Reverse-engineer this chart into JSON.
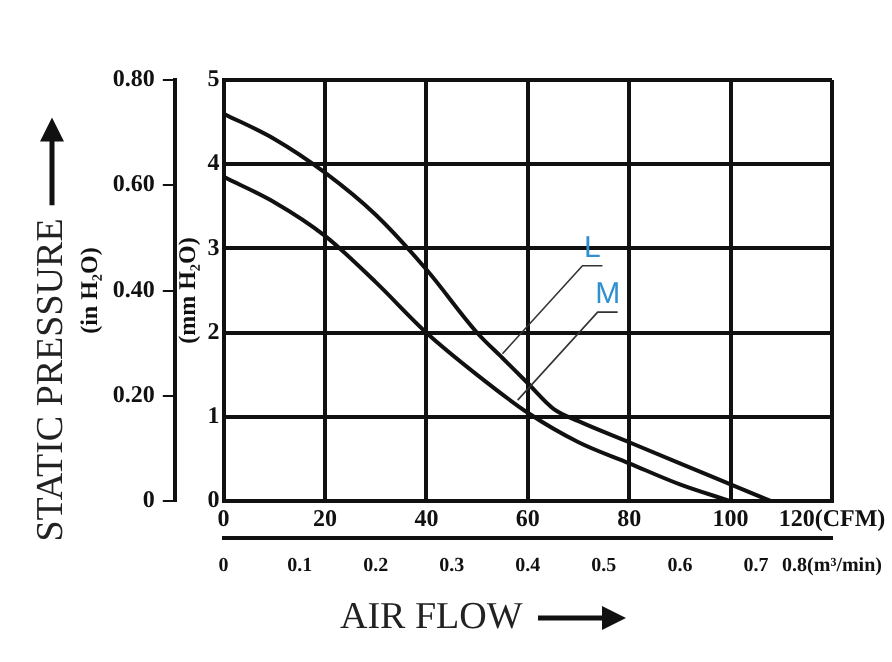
{
  "chart_data": {
    "type": "line",
    "ylabel": "(mm H₂O)",
    "y2label": "(in H₂O)",
    "x": [
      0,
      10,
      20,
      30,
      40,
      50,
      55,
      60,
      65,
      70,
      80,
      90,
      100,
      108
    ],
    "series": [
      {
        "color": "#111111",
        "values": [
          4.6,
          4.3,
          3.9,
          3.4,
          2.75,
          2.0,
          1.7,
          1.4,
          1.1,
          0.95,
          0.7,
          0.45,
          0.2,
          0
        ]
      },
      {
        "color": "#111111",
        "x": [
          0,
          10,
          20,
          30,
          40,
          50,
          60,
          70,
          80,
          90,
          100
        ],
        "values": [
          3.85,
          3.55,
          3.15,
          2.6,
          2.0,
          1.5,
          1.05,
          0.7,
          0.45,
          0.2,
          0
        ]
      }
    ],
    "xlim": [
      0,
      120
    ],
    "xticks": [
      0,
      20,
      40,
      60,
      80,
      100,
      {
        "value": 120,
        "label": "120(CFM)"
      }
    ],
    "x2lim": [
      0,
      0.8
    ],
    "x2ticks": [
      0,
      0.1,
      0.2,
      0.3,
      0.4,
      0.5,
      0.6,
      0.7,
      {
        "value": 0.8,
        "label": "0.8(m³/min)"
      }
    ],
    "ylim": [
      0,
      5
    ],
    "yticks": [
      0,
      1,
      2,
      3,
      4,
      5
    ],
    "y2lim": [
      0,
      0.8
    ],
    "y2ticks": [
      0,
      {
        "value": 0.2,
        "label": "0.20"
      },
      {
        "value": 0.4,
        "label": "0.40"
      },
      {
        "value": 0.6,
        "label": "0.60"
      },
      {
        "value": 0.8,
        "label": "0.80"
      }
    ],
    "annotations": [
      {
        "text": "L",
        "x": 55,
        "y": 1.75
      },
      {
        "text": "M",
        "x": 58,
        "y": 1.2
      },
      "STATIC PRESSURE",
      "AIR FLOW"
    ],
    "grid": true,
    "legend": false,
    "marker": "none",
    "line_style": "solid"
  }
}
